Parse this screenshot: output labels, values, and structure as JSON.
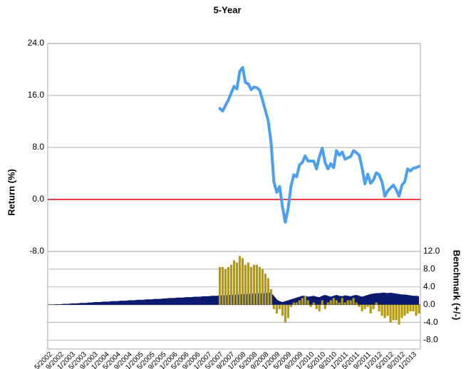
{
  "chart_data": [
    {
      "type": "line",
      "title": "5-Year",
      "y_label": "Return (%)",
      "ylim": [
        -8,
        24
      ],
      "yticks": [
        {
          "value": -8,
          "label": "-8.0"
        },
        {
          "value": 0,
          "label": "0.0"
        },
        {
          "value": 8,
          "label": "8.0"
        },
        {
          "value": 16,
          "label": "16.0"
        },
        {
          "value": 24,
          "label": "24.0"
        }
      ],
      "grid": true,
      "zero_line_color": "#e00000",
      "series": [
        {
          "color": "#4a9ff0",
          "values": [
            null,
            null,
            null,
            null,
            null,
            null,
            null,
            null,
            null,
            null,
            null,
            null,
            null,
            null,
            null,
            null,
            null,
            null,
            null,
            null,
            null,
            null,
            null,
            null,
            null,
            null,
            null,
            null,
            null,
            null,
            null,
            null,
            null,
            null,
            null,
            null,
            null,
            null,
            null,
            null,
            null,
            null,
            null,
            null,
            null,
            null,
            null,
            null,
            null,
            null,
            null,
            null,
            null,
            null,
            null,
            null,
            null,
            null,
            null,
            null,
            14.0,
            13.6,
            14.5,
            15.3,
            16.4,
            17.4,
            17.0,
            19.7,
            20.3,
            18.0,
            17.8,
            16.9,
            17.3,
            17.2,
            16.8,
            15.3,
            13.7,
            12.1,
            8.8,
            2.7,
            1.1,
            2.0,
            -1.1,
            -3.5,
            -1.4,
            2.0,
            3.8,
            3.5,
            5.3,
            5.7,
            6.7,
            5.9,
            5.9,
            5.9,
            4.7,
            6.6,
            7.9,
            5.7,
            4.7,
            5.5,
            4.9,
            7.5,
            6.8,
            7.3,
            6.2,
            6.4,
            6.6,
            7.5,
            7.2,
            6.8,
            4.9,
            2.4,
            3.9,
            2.5,
            3.0,
            4.1,
            3.8,
            2.7,
            0.5,
            1.3,
            1.8,
            2.2,
            1.5,
            0.5,
            2.2,
            2.7,
            4.7,
            4.4,
            4.8,
            4.9,
            5.1
          ]
        }
      ]
    },
    {
      "type": "bar",
      "y_label": "Benchmark (+/-)",
      "ylim": [
        -10,
        12
      ],
      "yticks": [
        {
          "value": -8,
          "label": "-8.0"
        },
        {
          "value": -4,
          "label": "-4.0"
        },
        {
          "value": 0,
          "label": "0.0"
        },
        {
          "value": 4,
          "label": "4.0"
        },
        {
          "value": 8,
          "label": "8.0"
        },
        {
          "value": 12,
          "label": "12.0"
        }
      ],
      "grid": true,
      "categories": [
        "5/2002",
        null,
        null,
        null,
        "9/2002",
        null,
        null,
        null,
        "1/2003",
        null,
        null,
        null,
        "5/2003",
        null,
        null,
        null,
        "9/2003",
        null,
        null,
        null,
        "1/2004",
        null,
        null,
        null,
        "5/2004",
        null,
        null,
        null,
        "9/2004",
        null,
        null,
        null,
        "1/2005",
        null,
        null,
        null,
        "5/2005",
        null,
        null,
        null,
        "9/2005",
        null,
        null,
        null,
        "1/2006",
        null,
        null,
        null,
        "5/2006",
        null,
        null,
        null,
        "9/2006",
        null,
        null,
        null,
        "1/2007",
        null,
        null,
        null,
        "5/2007",
        null,
        null,
        null,
        "9/2007",
        null,
        null,
        null,
        "1/2008",
        null,
        null,
        null,
        "5/2008",
        null,
        null,
        null,
        "9/2008",
        null,
        null,
        null,
        "1/2009",
        null,
        null,
        null,
        "5/2009",
        null,
        null,
        null,
        "9/2009",
        null,
        null,
        null,
        "1/2010",
        null,
        null,
        null,
        "5/2010",
        null,
        null,
        null,
        "9/2010",
        null,
        null,
        null,
        "1/2011",
        null,
        null,
        null,
        "5/2011",
        null,
        null,
        null,
        "9/2011",
        null,
        null,
        null,
        "1/2012",
        null,
        null,
        null,
        "5/2012",
        null,
        null,
        null,
        "9/2012",
        null,
        null,
        null,
        "1/2013",
        null,
        null
      ],
      "series": [
        {
          "type": "area",
          "color": "#0b1a6e",
          "values": [
            0.0,
            0.0,
            0.1,
            0.1,
            0.1,
            0.2,
            0.2,
            0.2,
            0.3,
            0.3,
            0.3,
            0.4,
            0.4,
            0.4,
            0.5,
            0.5,
            0.6,
            0.6,
            0.6,
            0.7,
            0.7,
            0.7,
            0.8,
            0.8,
            0.8,
            0.9,
            0.9,
            0.9,
            1.0,
            1.0,
            1.0,
            1.1,
            1.1,
            1.1,
            1.2,
            1.2,
            1.2,
            1.3,
            1.3,
            1.3,
            1.4,
            1.4,
            1.5,
            1.5,
            1.5,
            1.6,
            1.6,
            1.6,
            1.7,
            1.7,
            1.7,
            1.8,
            1.8,
            1.8,
            1.9,
            1.9,
            1.9,
            2.0,
            2.0,
            2.0,
            2.1,
            2.1,
            2.1,
            2.2,
            2.2,
            2.2,
            2.3,
            2.3,
            2.4,
            2.4,
            2.4,
            2.5,
            2.5,
            2.5,
            2.6,
            2.6,
            2.6,
            2.7,
            2.7,
            2.0,
            1.2,
            0.8,
            0.6,
            0.8,
            1.0,
            1.2,
            1.4,
            1.6,
            1.8,
            2.0,
            2.0,
            1.8,
            1.9,
            2.0,
            1.8,
            1.7,
            2.0,
            2.2,
            2.0,
            1.8,
            2.0,
            2.2,
            2.0,
            1.9,
            2.1,
            2.0,
            1.9,
            2.1,
            2.2,
            2.0,
            1.8,
            2.0,
            2.2,
            2.4,
            2.5,
            2.6,
            2.6,
            2.7,
            2.7,
            2.6,
            2.7,
            2.6,
            2.5,
            2.4,
            2.3,
            2.3,
            2.2,
            2.1,
            2.0,
            2.0,
            1.9
          ]
        },
        {
          "type": "bar",
          "color": "#b89c00",
          "values": [
            null,
            null,
            null,
            null,
            null,
            null,
            null,
            null,
            null,
            null,
            null,
            null,
            null,
            null,
            null,
            null,
            null,
            null,
            null,
            null,
            null,
            null,
            null,
            null,
            null,
            null,
            null,
            null,
            null,
            null,
            null,
            null,
            null,
            null,
            null,
            null,
            null,
            null,
            null,
            null,
            null,
            null,
            null,
            null,
            null,
            null,
            null,
            null,
            null,
            null,
            null,
            null,
            null,
            null,
            null,
            null,
            null,
            null,
            null,
            null,
            8.5,
            8.5,
            8.0,
            8.5,
            9.0,
            10.0,
            9.5,
            11.0,
            10.5,
            9.0,
            9.5,
            8.5,
            9.0,
            9.0,
            8.5,
            8.0,
            7.0,
            6.0,
            3.5,
            -1.0,
            -2.0,
            -1.0,
            -2.5,
            -4.0,
            -3.0,
            -0.5,
            0.5,
            0.5,
            1.0,
            1.5,
            2.0,
            1.0,
            -0.5,
            0.5,
            -1.0,
            -1.5,
            1.0,
            -1.0,
            0.5,
            1.0,
            1.5,
            1.0,
            0.5,
            1.5,
            0.5,
            1.0,
            1.0,
            1.5,
            0.5,
            -0.5,
            -1.5,
            -1.0,
            -0.5,
            -2.0,
            -1.0,
            0.5,
            -1.5,
            -2.5,
            -3.0,
            -2.5,
            -4.0,
            -3.5,
            -3.5,
            -4.5,
            -3.0,
            -2.5,
            -2.0,
            -1.5,
            -1.5,
            -2.5,
            -2.0
          ]
        }
      ]
    }
  ]
}
